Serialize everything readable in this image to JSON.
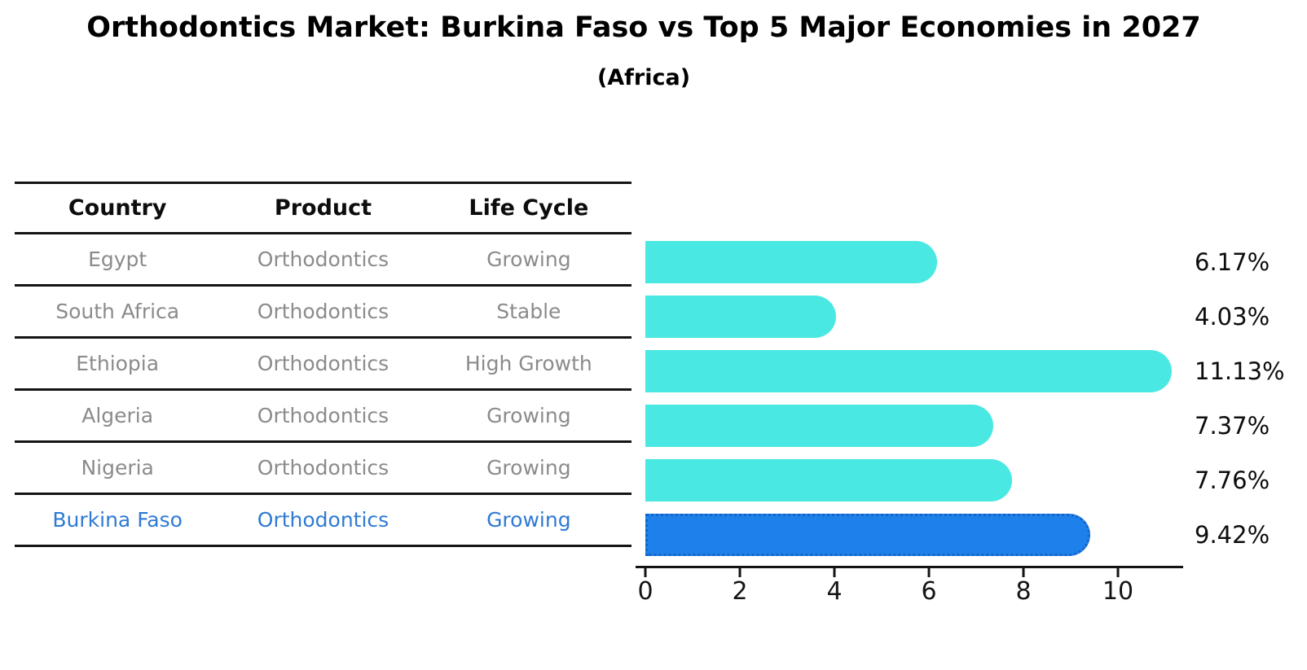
{
  "title": "Orthodontics Market: Burkina Faso vs Top 5 Major Economies in 2027",
  "subtitle": "(Africa)",
  "table": {
    "headers": [
      "Country",
      "Product",
      "Life Cycle"
    ],
    "rows": [
      {
        "country": "Egypt",
        "product": "Orthodontics",
        "life_cycle": "Growing"
      },
      {
        "country": "South Africa",
        "product": "Orthodontics",
        "life_cycle": "Stable"
      },
      {
        "country": "Ethiopia",
        "product": "Orthodontics",
        "life_cycle": "High Growth"
      },
      {
        "country": "Algeria",
        "product": "Orthodontics",
        "life_cycle": "Growing"
      },
      {
        "country": "Nigeria",
        "product": "Orthodontics",
        "life_cycle": "Growing"
      },
      {
        "country": "Burkina Faso",
        "product": "Orthodontics",
        "life_cycle": "Growing"
      }
    ]
  },
  "chart_data": {
    "type": "bar",
    "orientation": "horizontal",
    "title": "Orthodontics Market: Burkina Faso vs Top 5 Major Economies in 2027 (Africa)",
    "categories": [
      "Egypt",
      "South Africa",
      "Ethiopia",
      "Algeria",
      "Nigeria",
      "Burkina Faso"
    ],
    "values": [
      6.17,
      4.03,
      11.13,
      7.37,
      7.76,
      9.42
    ],
    "value_labels": [
      "6.17%",
      "4.03%",
      "11.13%",
      "7.37%",
      "7.76%",
      "9.42%"
    ],
    "x_ticks": [
      0,
      2,
      4,
      6,
      8,
      10
    ],
    "xlim": [
      0,
      11.4
    ],
    "grid": false,
    "legend": false,
    "highlight_index": 5,
    "bar_color": "#4AE8E2",
    "highlight_color": "#1E81EB",
    "highlight_border_color": "#1565c8"
  },
  "colors": {
    "background": "#ffffff",
    "table_line": "#141414",
    "row_text": "#8b8b8b",
    "header_text": "#0d0d0d",
    "highlight_row_text": "#2e7ad3"
  }
}
